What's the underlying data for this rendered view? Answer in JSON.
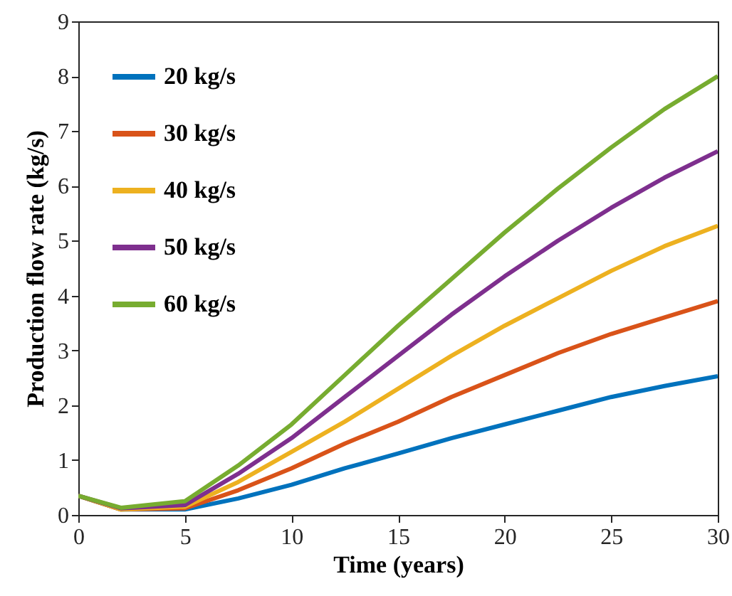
{
  "chart_data": {
    "type": "line",
    "xlabel": "Time (years)",
    "ylabel": "Production flow rate (kg/s)",
    "x": [
      0,
      2,
      5,
      7.5,
      10,
      12.5,
      15,
      17.5,
      20,
      22.5,
      25,
      27.5,
      30
    ],
    "series": [
      {
        "name": "20 kg/s",
        "color": "#0072bd",
        "values": [
          0.35,
          0.1,
          0.1,
          0.3,
          0.55,
          0.85,
          1.12,
          1.4,
          1.65,
          1.9,
          2.15,
          2.35,
          2.53
        ]
      },
      {
        "name": "30 kg/s",
        "color": "#d95319",
        "values": [
          0.35,
          0.1,
          0.12,
          0.45,
          0.85,
          1.3,
          1.7,
          2.15,
          2.55,
          2.95,
          3.3,
          3.6,
          3.9
        ]
      },
      {
        "name": "40 kg/s",
        "color": "#edb120",
        "values": [
          0.35,
          0.1,
          0.15,
          0.6,
          1.15,
          1.7,
          2.3,
          2.9,
          3.45,
          3.95,
          4.45,
          4.9,
          5.27
        ]
      },
      {
        "name": "50 kg/s",
        "color": "#7e2f8e",
        "values": [
          0.35,
          0.12,
          0.18,
          0.75,
          1.4,
          2.15,
          2.9,
          3.65,
          4.35,
          5.0,
          5.6,
          6.15,
          6.63
        ]
      },
      {
        "name": "60 kg/s",
        "color": "#77ac30",
        "values": [
          0.35,
          0.13,
          0.25,
          0.9,
          1.65,
          2.55,
          3.45,
          4.3,
          5.15,
          5.95,
          6.7,
          7.4,
          8.0
        ]
      }
    ],
    "xlim": [
      0,
      30
    ],
    "xticks": [
      0,
      5,
      10,
      15,
      20,
      25,
      30
    ],
    "ylim": [
      0,
      9
    ],
    "yticks": [
      0,
      1,
      2,
      3,
      4,
      5,
      6,
      7,
      8,
      9
    ],
    "grid": false,
    "legend": "top left",
    "marker": "none",
    "line_style": "solid"
  }
}
